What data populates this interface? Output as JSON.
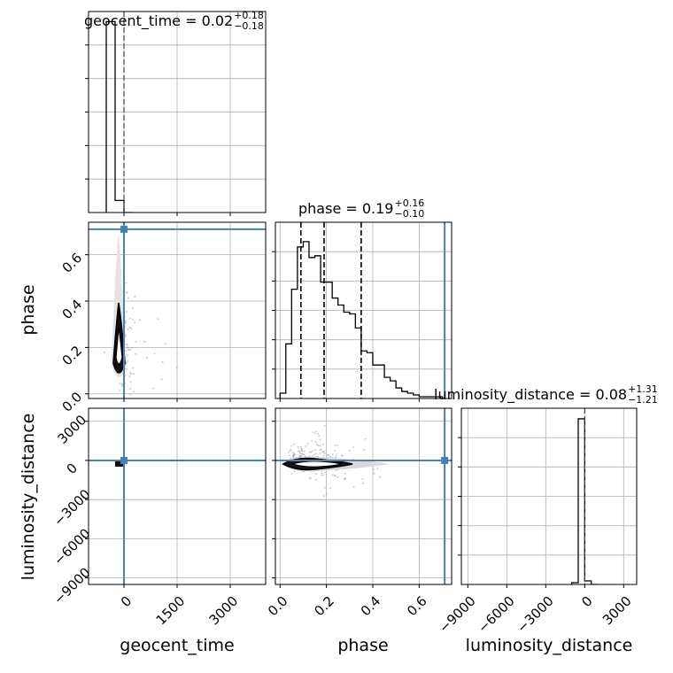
{
  "chart_data": {
    "type": "corner",
    "parameters": [
      {
        "name": "geocent_time",
        "median": "0.02",
        "plus": "+0.18",
        "minus": "−0.18",
        "xlim": [
          -1000,
          4000
        ],
        "ticks": [
          0,
          1500,
          3000
        ],
        "tick_labels": [
          "0",
          "1500",
          "3000"
        ],
        "truth": 0,
        "hist": {
          "edges": [
            -500,
            -250,
            0,
            250
          ],
          "counts": [
            0.95,
            0.06,
            0
          ]
        }
      },
      {
        "name": "phase",
        "median": "0.19",
        "plus": "+0.16",
        "minus": "−0.10",
        "xlim": [
          -0.02,
          0.74
        ],
        "ticks": [
          0.0,
          0.2,
          0.4,
          0.6
        ],
        "tick_labels": [
          "0.0",
          "0.2",
          "0.4",
          "0.6"
        ],
        "truth": 0.71,
        "quantiles": [
          0.09,
          0.19,
          0.35
        ],
        "hist": {
          "edges": [
            0.0,
            0.025,
            0.05,
            0.075,
            0.1,
            0.125,
            0.15,
            0.175,
            0.2,
            0.225,
            0.25,
            0.275,
            0.3,
            0.325,
            0.35,
            0.375,
            0.4,
            0.425,
            0.45,
            0.475,
            0.5,
            0.525,
            0.55,
            0.575,
            0.6,
            0.625,
            0.65,
            0.675,
            0.7
          ],
          "counts": [
            0.03,
            0.31,
            0.62,
            0.86,
            0.89,
            0.8,
            0.81,
            0.66,
            0.66,
            0.57,
            0.53,
            0.49,
            0.48,
            0.4,
            0.27,
            0.26,
            0.19,
            0.19,
            0.12,
            0.1,
            0.06,
            0.04,
            0.03,
            0.02,
            0.01,
            0.01,
            0.01,
            0.01
          ]
        }
      },
      {
        "name": "luminosity_distance",
        "median": "0.08",
        "plus": "+1.31",
        "minus": "−1.21",
        "xlim": [
          -9500,
          4000
        ],
        "ticks": [
          -9000,
          -6000,
          -3000,
          0,
          3000
        ],
        "tick_labels": [
          "−9000",
          "−6000",
          "−3000",
          "0",
          "3000"
        ],
        "truth": 0,
        "hist": {
          "edges": [
            -1000,
            -500,
            0,
            500,
            1000
          ],
          "counts": [
            0.01,
            0.94,
            0.02,
            0
          ]
        }
      }
    ],
    "axes_ranges": {
      "phase_y": [
        -0.02,
        0.74
      ],
      "luminosity_distance_y": [
        -9500,
        4000
      ]
    },
    "y_ticks": {
      "phase": {
        "values": [
          0.0,
          0.2,
          0.4,
          0.6
        ],
        "labels": [
          "0.0",
          "0.2",
          "0.4",
          "0.6"
        ]
      },
      "luminosity_distance": {
        "values": [
          -9000,
          -6000,
          -3000,
          0,
          3000
        ],
        "labels": [
          "−9000",
          "−6000",
          "−3000",
          "0",
          "3000"
        ]
      }
    },
    "axis_labels": {
      "x": [
        "geocent_time",
        "phase",
        "luminosity_distance"
      ],
      "y": [
        "phase",
        "luminosity_distance"
      ]
    },
    "grid": true,
    "colors": {
      "truth": "#4682b4",
      "hist": "#000000",
      "grid": "#b0b0b0",
      "scatter": "#9a9a9a"
    }
  }
}
